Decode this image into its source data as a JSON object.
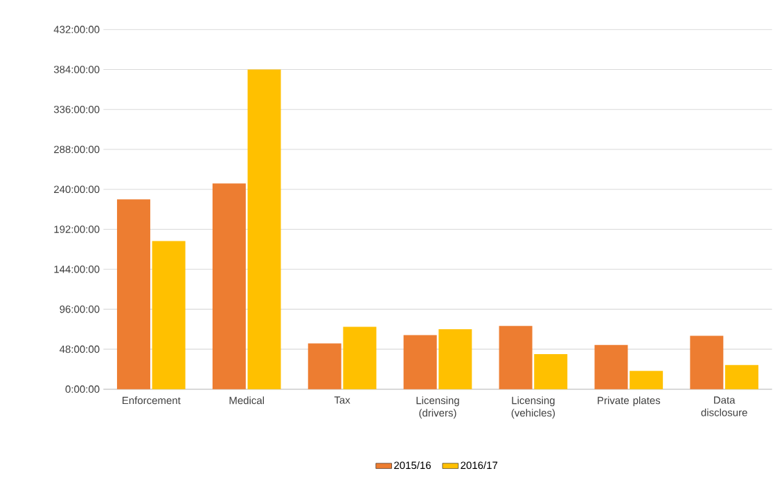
{
  "chart_data": {
    "type": "bar",
    "categories": [
      "Enforcement",
      "Medical",
      "Tax",
      "Licensing (drivers)",
      "Licensing (vehicles)",
      "Private plates",
      "Data disclosure"
    ],
    "series": [
      {
        "name": "2015/16",
        "color": "#ed7d31",
        "values": [
          228,
          247,
          55,
          65,
          76,
          53,
          64
        ]
      },
      {
        "name": "2016/17",
        "color": "#ffc000",
        "values": [
          178,
          384,
          75,
          72,
          42,
          22,
          29
        ]
      }
    ],
    "ylim": [
      0,
      432
    ],
    "yticks": [
      {
        "value": 0,
        "label": "0:00:00"
      },
      {
        "value": 48,
        "label": "48:00:00"
      },
      {
        "value": 96,
        "label": "96:00:00"
      },
      {
        "value": 144,
        "label": "144:00:00"
      },
      {
        "value": 192,
        "label": "192:00:00"
      },
      {
        "value": 240,
        "label": "240:00:00"
      },
      {
        "value": 288,
        "label": "288:00:00"
      },
      {
        "value": 336,
        "label": "336:00:00"
      },
      {
        "value": 384,
        "label": "384:00:00"
      },
      {
        "value": 432,
        "label": "432:00:00"
      }
    ],
    "grid": "y",
    "legend": "bottom"
  }
}
